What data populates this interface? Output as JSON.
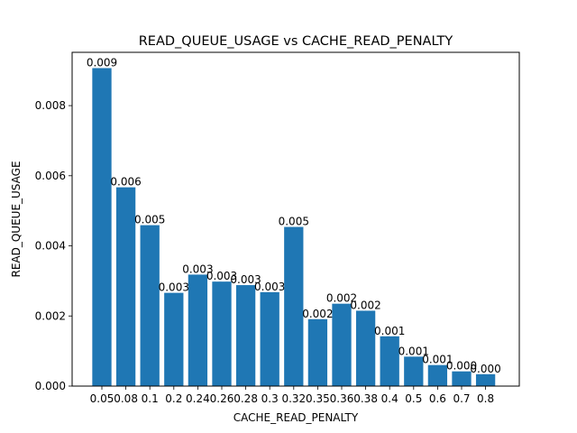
{
  "chart_data": {
    "type": "bar",
    "title": "READ_QUEUE_USAGE vs CACHE_READ_PENALTY",
    "xlabel": "CACHE_READ_PENALTY",
    "ylabel": "READ_QUEUE_USAGE",
    "categories": [
      "0.05",
      "0.08",
      "0.1",
      "0.2",
      "0.24",
      "0.26",
      "0.28",
      "0.3",
      "0.32",
      "0.35",
      "0.36",
      "0.38",
      "0.4",
      "0.5",
      "0.6",
      "0.7",
      "0.8"
    ],
    "values": [
      0.00907,
      0.00567,
      0.00459,
      0.00266,
      0.00318,
      0.00298,
      0.00288,
      0.00268,
      0.00454,
      0.00191,
      0.00235,
      0.00215,
      0.00142,
      0.00084,
      0.0006,
      0.00042,
      0.00034
    ],
    "data_labels": [
      "0.009",
      "0.006",
      "0.005",
      "0.003",
      "0.003",
      "0.003",
      "0.003",
      "0.003",
      "0.005",
      "0.002",
      "0.002",
      "0.002",
      "0.001",
      "0.001",
      "0.001",
      "0.000",
      "0.000"
    ],
    "yticks": [
      0,
      0.002,
      0.004,
      0.006,
      0.008
    ],
    "ytick_labels": [
      "0.000",
      "0.002",
      "0.004",
      "0.006",
      "0.008"
    ],
    "ylim": [
      0,
      0.00952
    ],
    "grid": false,
    "bar_color": "#1f77b4"
  }
}
